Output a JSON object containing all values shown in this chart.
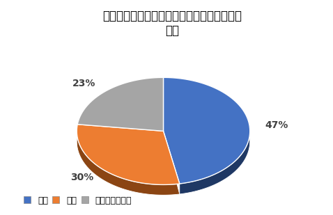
{
  "title": "ムーヴキャンバスの運転＆走行性能の満足度\n調査",
  "slices": [
    47,
    30,
    23
  ],
  "labels": [
    "満足",
    "不満",
    "どちらでもない"
  ],
  "colors": [
    "#4472C4",
    "#ED7D31",
    "#A5A5A5"
  ],
  "shadow_colors": [
    "#1F3864",
    "#8B4513",
    "#7F7F7F"
  ],
  "pct_labels": [
    "47%",
    "30%",
    "23%"
  ],
  "legend_labels": [
    "満足",
    "不満",
    "どちらでもない"
  ],
  "startangle": 90,
  "title_fontsize": 12,
  "pct_fontsize": 10,
  "depth": 0.12,
  "squeeze": 0.62
}
